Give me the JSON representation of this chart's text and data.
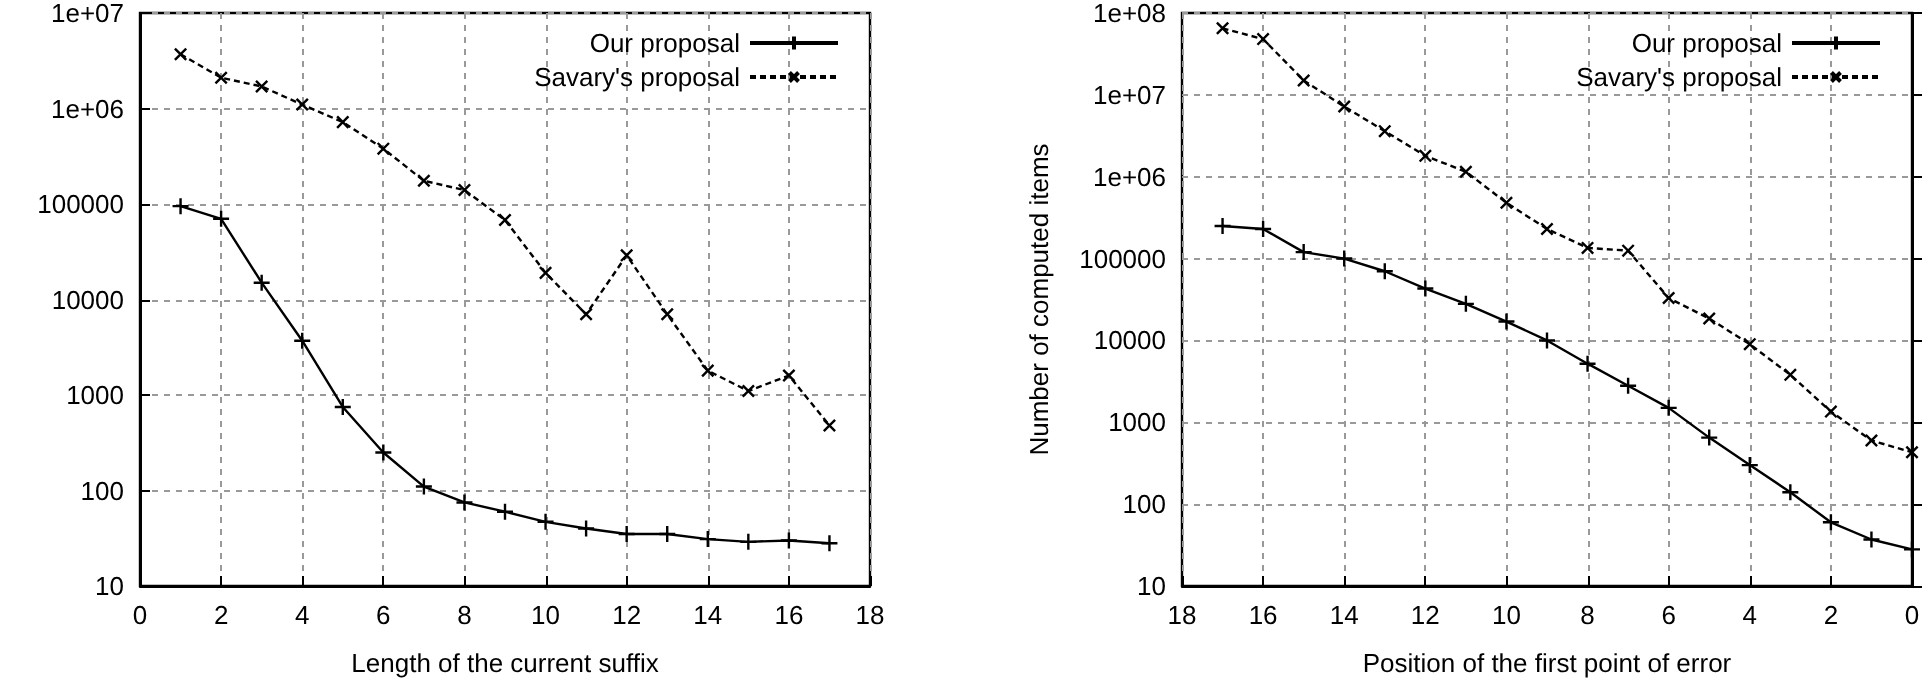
{
  "chart_data": [
    {
      "type": "line",
      "xlabel": "Length of the current suffix",
      "x": [
        1,
        2,
        3,
        4,
        5,
        6,
        7,
        8,
        9,
        10,
        11,
        12,
        13,
        14,
        15,
        16,
        17
      ],
      "series": [
        {
          "name": "Our proposal",
          "color": "#000000",
          "line_style": "solid",
          "values": [
            95000,
            70000,
            15000,
            3700,
            750,
            250,
            110,
            75,
            60,
            47,
            40,
            35,
            35,
            31,
            29,
            30,
            28
          ]
        },
        {
          "name": "Savary's proposal",
          "color": "#000000",
          "line_style": "dashed",
          "values": [
            3700000,
            2100000,
            1700000,
            1100000,
            720000,
            380000,
            175000,
            140000,
            68000,
            19000,
            7000,
            29000,
            7000,
            1800,
            1100,
            1600,
            480
          ]
        }
      ],
      "log": "y",
      "xlim": [
        0,
        18
      ],
      "xticks": [
        0,
        2,
        4,
        6,
        8,
        10,
        12,
        14,
        16,
        18
      ],
      "ylim": [
        10,
        10000000
      ],
      "yticks": [
        10,
        100,
        1000,
        10000,
        100000,
        {
          "value": 1000000,
          "label": "1e+06"
        },
        {
          "value": 10000000,
          "label": "1e+07"
        }
      ],
      "grid": true,
      "legend": "top right",
      "marker": "cross"
    },
    {
      "type": "line",
      "xlabel": "Position of the first point of error",
      "ylabel": "Number of computed items",
      "x": [
        17,
        16,
        15,
        14,
        13,
        12,
        11,
        10,
        9,
        8,
        7,
        6,
        5,
        4,
        3,
        2,
        1,
        0
      ],
      "series": [
        {
          "name": "Our proposal",
          "color": "#000000",
          "line_style": "solid",
          "values": [
            250000,
            230000,
            120000,
            100000,
            70000,
            43000,
            28000,
            17000,
            10000,
            5200,
            2800,
            1500,
            650,
            300,
            140,
            60,
            37,
            28
          ]
        },
        {
          "name": "Savary's proposal",
          "color": "#000000",
          "line_style": "dashed",
          "values": [
            65000000,
            48000000,
            15000000,
            7200000,
            3600000,
            1800000,
            1150000,
            480000,
            230000,
            135000,
            125000,
            33000,
            18500,
            9000,
            3800,
            1350,
            600,
            430
          ]
        }
      ],
      "log": "y",
      "xlim": [
        18,
        0
      ],
      "xticks": [
        18,
        16,
        14,
        12,
        10,
        8,
        6,
        4,
        2,
        0
      ],
      "ylim": [
        10,
        100000000
      ],
      "yticks": [
        10,
        100,
        1000,
        10000,
        100000,
        {
          "value": 1000000,
          "label": "1e+06"
        },
        {
          "value": 10000000,
          "label": "1e+07"
        },
        {
          "value": 100000000,
          "label": "1e+08"
        }
      ],
      "grid": true,
      "legend": "top right",
      "marker": "cross"
    }
  ]
}
